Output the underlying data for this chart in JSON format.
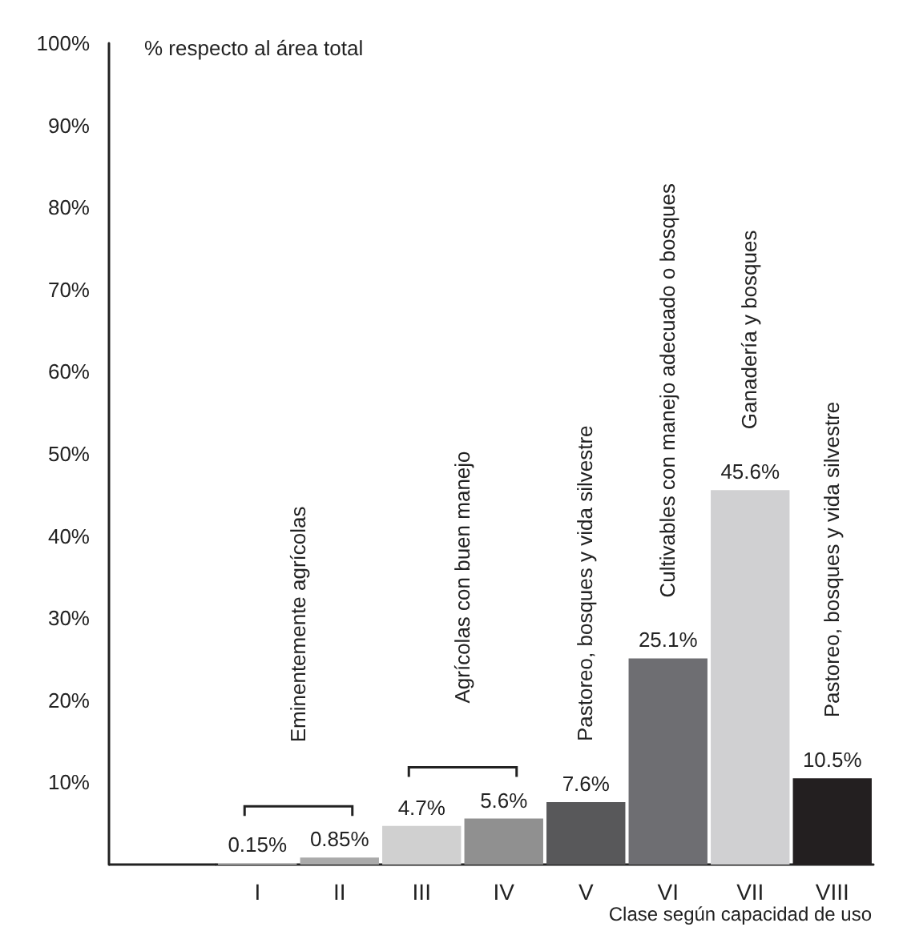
{
  "chart_data": {
    "type": "bar",
    "xlabel": "Clase según capacidad de uso",
    "ylabel": "% respecto al área total",
    "categories": [
      "I",
      "II",
      "III",
      "IV",
      "V",
      "VI",
      "VII",
      "VIII"
    ],
    "values": [
      0.15,
      0.85,
      4.7,
      5.6,
      7.6,
      25.1,
      45.6,
      10.5
    ],
    "colors": [
      "#d8d8d8",
      "#aaaaaa",
      "#d0d0d0",
      "#909090",
      "#58585a",
      "#6e6e72",
      "#d0d0d2",
      "#231f20"
    ],
    "value_labels": [
      "0.15%",
      "0.85%",
      "4.7%",
      "5.6%",
      "7.6%",
      "25.1%",
      "45.6%",
      "10.5%"
    ],
    "ylim": [
      0,
      100
    ],
    "yticks": [
      {
        "value": 10,
        "label": "10%"
      },
      {
        "value": 20,
        "label": "20%"
      },
      {
        "value": 30,
        "label": "30%"
      },
      {
        "value": 40,
        "label": "40%"
      },
      {
        "value": 50,
        "label": "50%"
      },
      {
        "value": 60,
        "label": "60%"
      },
      {
        "value": 70,
        "label": "70%"
      },
      {
        "value": 80,
        "label": "80%"
      },
      {
        "value": 90,
        "label": "90%"
      },
      {
        "value": 100,
        "label": "100%"
      }
    ],
    "grid": false,
    "annotations": [
      "Eminentemente agrícolas",
      "Agrícolas con buen manejo",
      "Pastoreo, bosques y vida silvestre",
      "Cultivables con manejo adecuado o bosques",
      "Ganadería y bosques",
      "Pastoreo, bosques y vida silvestre"
    ]
  }
}
